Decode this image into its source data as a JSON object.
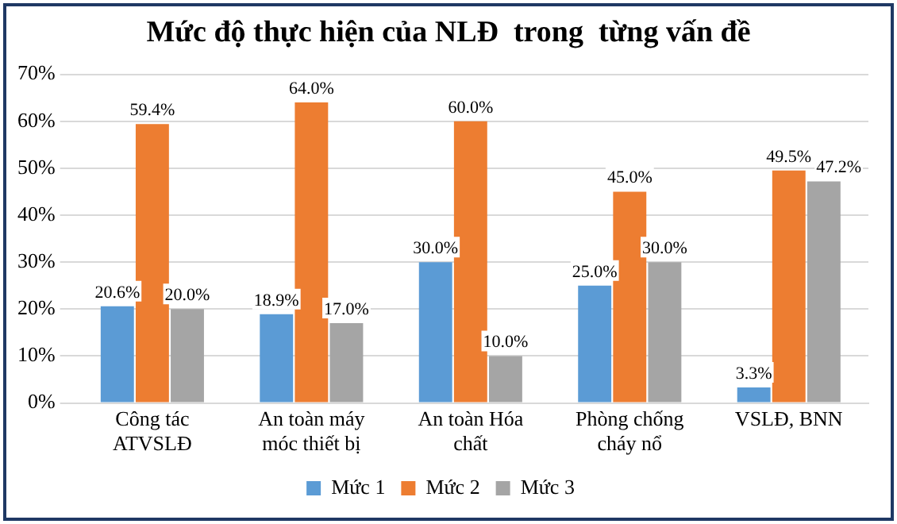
{
  "chart_data": {
    "type": "bar",
    "title": "Mức độ thực hiện của NLĐ  trong  từng vấn đề",
    "categories": [
      "Công tác ATVSLĐ",
      "An toàn máy móc thiết bị",
      "An toàn Hóa chất",
      "Phòng chống cháy nổ",
      "VSLĐ, BNN"
    ],
    "series": [
      {
        "name": "Mức 1",
        "color": "#5b9bd5",
        "values": [
          20.6,
          18.9,
          30.0,
          25.0,
          3.3
        ],
        "value_labels": [
          "20.6%",
          "18.9%",
          "30.0%",
          "25.0%",
          "3.3%"
        ]
      },
      {
        "name": "Mức 2",
        "color": "#ed7d31",
        "values": [
          59.4,
          64.0,
          60.0,
          45.0,
          49.5
        ],
        "value_labels": [
          "59.4%",
          "64.0%",
          "60.0%",
          "45.0%",
          "49.5%"
        ]
      },
      {
        "name": "Mức 3",
        "color": "#a5a5a5",
        "values": [
          20.0,
          17.0,
          10.0,
          30.0,
          47.2
        ],
        "value_labels": [
          "20.0%",
          "17.0%",
          "10.0%",
          "30.0%",
          "47.2%"
        ]
      }
    ],
    "ylim": [
      0,
      70
    ],
    "yticks": [
      {
        "value": 0,
        "label": "0%"
      },
      {
        "value": 10,
        "label": "10%"
      },
      {
        "value": 20,
        "label": "20%"
      },
      {
        "value": 30,
        "label": "30%"
      },
      {
        "value": 40,
        "label": "40%"
      },
      {
        "value": 50,
        "label": "50%"
      },
      {
        "value": 60,
        "label": "60%"
      },
      {
        "value": 70,
        "label": "70%"
      }
    ],
    "grid": "y",
    "legend": "bottom"
  }
}
